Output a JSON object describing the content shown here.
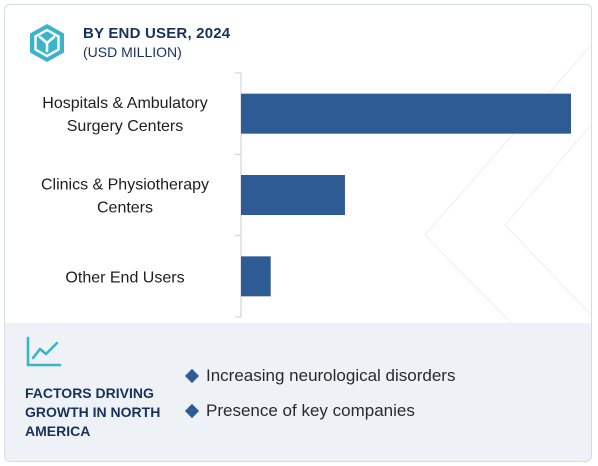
{
  "header": {
    "title": "BY END USER, 2024",
    "subtitle": "(USD MILLION)"
  },
  "chart_data": {
    "type": "bar",
    "orientation": "horizontal",
    "categories": [
      [
        "Hospitals & Ambulatory",
        "Surgery Centers"
      ],
      [
        "Clinics & Physiotherapy",
        "Centers"
      ],
      [
        "Other End Users"
      ]
    ],
    "values": [
      100,
      31.5,
      9
    ],
    "xlim": [
      0,
      100
    ],
    "title": "BY END USER, 2024",
    "subtitle": "(USD MILLION)",
    "xlabel": "",
    "ylabel": "",
    "grid": false,
    "legend": "none",
    "bar_color": "#2e5b93"
  },
  "footer": {
    "title": "FACTORS DRIVING GROWTH IN NORTH AMERICA",
    "factors": [
      "Increasing neurological disorders",
      "Presence of key companies"
    ]
  },
  "icons": {
    "logo": "hexagon-logo-icon",
    "growth": "line-chart-icon",
    "bullet": "diamond-bullet-icon"
  },
  "colors": {
    "accent": "#2e5b93",
    "heading": "#16325c",
    "footer_bg": "#eef1f6"
  }
}
